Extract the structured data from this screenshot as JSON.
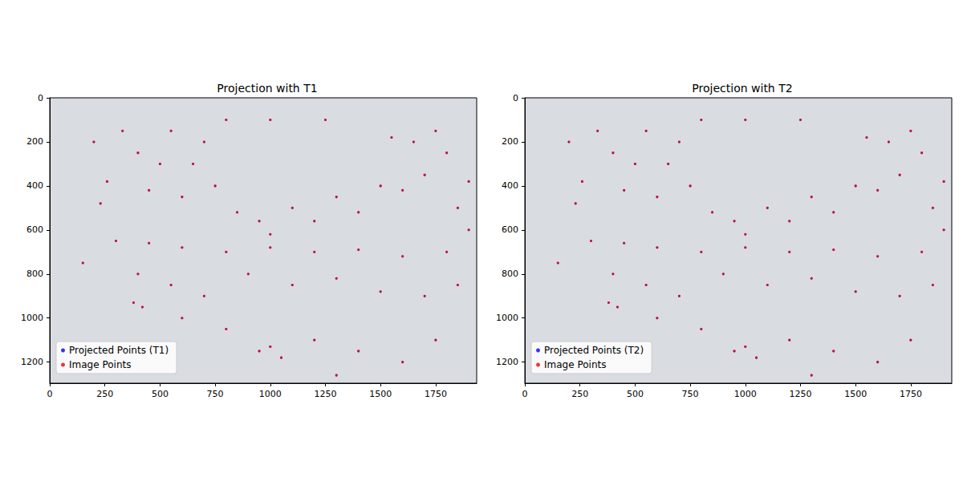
{
  "chart_data": [
    {
      "type": "scatter",
      "title": "Projection with T1",
      "legend": "lower left",
      "grid": false,
      "xlim": [
        0,
        1936
      ],
      "xticks": [
        0,
        250,
        500,
        750,
        1000,
        1250,
        1500,
        1750
      ],
      "ylim": [
        1296,
        0
      ],
      "yticks": [
        0,
        200,
        400,
        600,
        800,
        1000,
        1200
      ],
      "series": [
        {
          "name": "Projected Points (T1)",
          "color": "#0000ff",
          "marker": "circle",
          "x": [
            200,
            230,
            260,
            330,
            400,
            450,
            500,
            550,
            600,
            650,
            700,
            750,
            800,
            850,
            950,
            1000,
            1100,
            1200,
            1300,
            1400,
            1500,
            1600,
            1700,
            1750,
            1800,
            1850,
            1900,
            1650,
            1550,
            1250,
            1000,
            300,
            450,
            600,
            800,
            1000,
            1200,
            1400,
            1600,
            1800,
            400,
            550,
            700,
            900,
            1100,
            1300,
            1500,
            1700,
            1850,
            380,
            420,
            600,
            800,
            950,
            1000,
            1050,
            1200,
            1400,
            1600,
            1750,
            1300,
            150,
            1900
          ],
          "values": [
            200,
            480,
            380,
            150,
            250,
            420,
            300,
            150,
            450,
            300,
            200,
            400,
            100,
            520,
            560,
            620,
            500,
            560,
            450,
            520,
            400,
            420,
            350,
            150,
            250,
            500,
            380,
            200,
            180,
            100,
            100,
            650,
            660,
            680,
            700,
            680,
            700,
            690,
            720,
            700,
            800,
            850,
            900,
            800,
            850,
            820,
            880,
            900,
            850,
            930,
            950,
            1000,
            1050,
            1150,
            1130,
            1180,
            1100,
            1150,
            1200,
            1100,
            1260,
            750,
            600
          ]
        },
        {
          "name": "Image Points",
          "color": "#ff0000",
          "marker": "circle",
          "x": [
            200,
            230,
            260,
            330,
            400,
            450,
            500,
            550,
            600,
            650,
            700,
            750,
            800,
            850,
            950,
            1000,
            1100,
            1200,
            1300,
            1400,
            1500,
            1600,
            1700,
            1750,
            1800,
            1850,
            1900,
            1650,
            1550,
            1250,
            1000,
            300,
            450,
            600,
            800,
            1000,
            1200,
            1400,
            1600,
            1800,
            400,
            550,
            700,
            900,
            1100,
            1300,
            1500,
            1700,
            1850,
            380,
            420,
            600,
            800,
            950,
            1000,
            1050,
            1200,
            1400,
            1600,
            1750,
            1300,
            150,
            1900
          ],
          "values": [
            200,
            480,
            380,
            150,
            250,
            420,
            300,
            150,
            450,
            300,
            200,
            400,
            100,
            520,
            560,
            620,
            500,
            560,
            450,
            520,
            400,
            420,
            350,
            150,
            250,
            500,
            380,
            200,
            180,
            100,
            100,
            650,
            660,
            680,
            700,
            680,
            700,
            690,
            720,
            700,
            800,
            850,
            900,
            800,
            850,
            820,
            880,
            900,
            850,
            930,
            950,
            1000,
            1050,
            1150,
            1130,
            1180,
            1100,
            1150,
            1200,
            1100,
            1260,
            750,
            600
          ]
        }
      ]
    },
    {
      "type": "scatter",
      "title": "Projection with T2",
      "legend": "lower left",
      "grid": false,
      "xlim": [
        0,
        1936
      ],
      "xticks": [
        0,
        250,
        500,
        750,
        1000,
        1250,
        1500,
        1750
      ],
      "ylim": [
        1296,
        0
      ],
      "yticks": [
        0,
        200,
        400,
        600,
        800,
        1000,
        1200
      ],
      "series": [
        {
          "name": "Projected Points (T2)",
          "color": "#0000ff",
          "marker": "circle",
          "x": [
            200,
            230,
            260,
            330,
            400,
            450,
            500,
            550,
            600,
            650,
            700,
            750,
            800,
            850,
            950,
            1000,
            1100,
            1200,
            1300,
            1400,
            1500,
            1600,
            1700,
            1750,
            1800,
            1850,
            1900,
            1650,
            1550,
            1250,
            1000,
            300,
            450,
            600,
            800,
            1000,
            1200,
            1400,
            1600,
            1800,
            400,
            550,
            700,
            900,
            1100,
            1300,
            1500,
            1700,
            1850,
            380,
            420,
            600,
            800,
            950,
            1000,
            1050,
            1200,
            1400,
            1600,
            1750,
            1300,
            150,
            1900
          ],
          "values": [
            200,
            480,
            380,
            150,
            250,
            420,
            300,
            150,
            450,
            300,
            200,
            400,
            100,
            520,
            560,
            620,
            500,
            560,
            450,
            520,
            400,
            420,
            350,
            150,
            250,
            500,
            380,
            200,
            180,
            100,
            100,
            650,
            660,
            680,
            700,
            680,
            700,
            690,
            720,
            700,
            800,
            850,
            900,
            800,
            850,
            820,
            880,
            900,
            850,
            930,
            950,
            1000,
            1050,
            1150,
            1130,
            1180,
            1100,
            1150,
            1200,
            1100,
            1260,
            750,
            600
          ]
        },
        {
          "name": "Image Points",
          "color": "#ff0000",
          "marker": "circle",
          "x": [
            200,
            230,
            260,
            330,
            400,
            450,
            500,
            550,
            600,
            650,
            700,
            750,
            800,
            850,
            950,
            1000,
            1100,
            1200,
            1300,
            1400,
            1500,
            1600,
            1700,
            1750,
            1800,
            1850,
            1900,
            1650,
            1550,
            1250,
            1000,
            300,
            450,
            600,
            800,
            1000,
            1200,
            1400,
            1600,
            1800,
            400,
            550,
            700,
            900,
            1100,
            1300,
            1500,
            1700,
            1850,
            380,
            420,
            600,
            800,
            950,
            1000,
            1050,
            1200,
            1400,
            1600,
            1750,
            1300,
            150,
            1900
          ],
          "values": [
            200,
            480,
            380,
            150,
            250,
            420,
            300,
            150,
            450,
            300,
            200,
            400,
            100,
            520,
            560,
            620,
            500,
            560,
            450,
            520,
            400,
            420,
            350,
            150,
            250,
            500,
            380,
            200,
            180,
            100,
            100,
            650,
            660,
            680,
            700,
            680,
            700,
            690,
            720,
            700,
            800,
            850,
            900,
            800,
            850,
            820,
            880,
            900,
            850,
            930,
            950,
            1000,
            1050,
            1150,
            1130,
            1180,
            1100,
            1150,
            1200,
            1100,
            1260,
            750,
            600
          ]
        }
      ]
    }
  ]
}
